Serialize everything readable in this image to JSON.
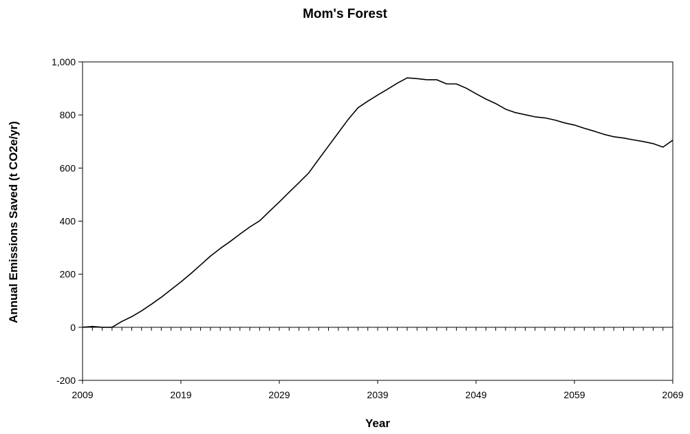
{
  "chart_data": {
    "type": "line",
    "title": "Mom's Forest",
    "xlabel": "Year",
    "ylabel": "Annual Emissions Saved (t CO2e/yr)",
    "xlim": [
      2009,
      2069
    ],
    "ylim": [
      -200,
      1000
    ],
    "x_ticks": [
      "2009",
      "2019",
      "2029",
      "2039",
      "2049",
      "2059",
      "2069"
    ],
    "y_ticks": [
      "-200",
      "0",
      "200",
      "400",
      "600",
      "800",
      "1,000"
    ],
    "grid": false,
    "legend": "none",
    "series": [
      {
        "color": "#000000",
        "x": [
          2009,
          2010,
          2011,
          2012,
          2013,
          2014,
          2015,
          2016,
          2017,
          2018,
          2019,
          2020,
          2021,
          2022,
          2023,
          2024,
          2025,
          2026,
          2027,
          2028,
          2029,
          2030,
          2031,
          2032,
          2033,
          2034,
          2035,
          2036,
          2037,
          2038,
          2039,
          2040,
          2041,
          2042,
          2043,
          2044,
          2045,
          2046,
          2047,
          2048,
          2049,
          2050,
          2051,
          2052,
          2053,
          2054,
          2055,
          2056,
          2057,
          2058,
          2059,
          2060,
          2061,
          2062,
          2063,
          2064,
          2065,
          2066,
          2067,
          2068,
          2069
        ],
        "values": [
          0,
          3,
          0,
          0,
          22,
          40,
          62,
          87,
          113,
          142,
          171,
          202,
          235,
          268,
          297,
          323,
          351,
          378,
          401,
          437,
          472,
          509,
          545,
          582,
          633,
          683,
          733,
          783,
          827,
          852,
          875,
          897,
          920,
          940,
          937,
          933,
          933,
          917,
          917,
          901,
          880,
          860,
          843,
          822,
          809,
          801,
          793,
          789,
          781,
          770,
          762,
          750,
          739,
          727,
          718,
          713,
          706,
          700,
          692,
          679,
          705
        ]
      }
    ]
  }
}
